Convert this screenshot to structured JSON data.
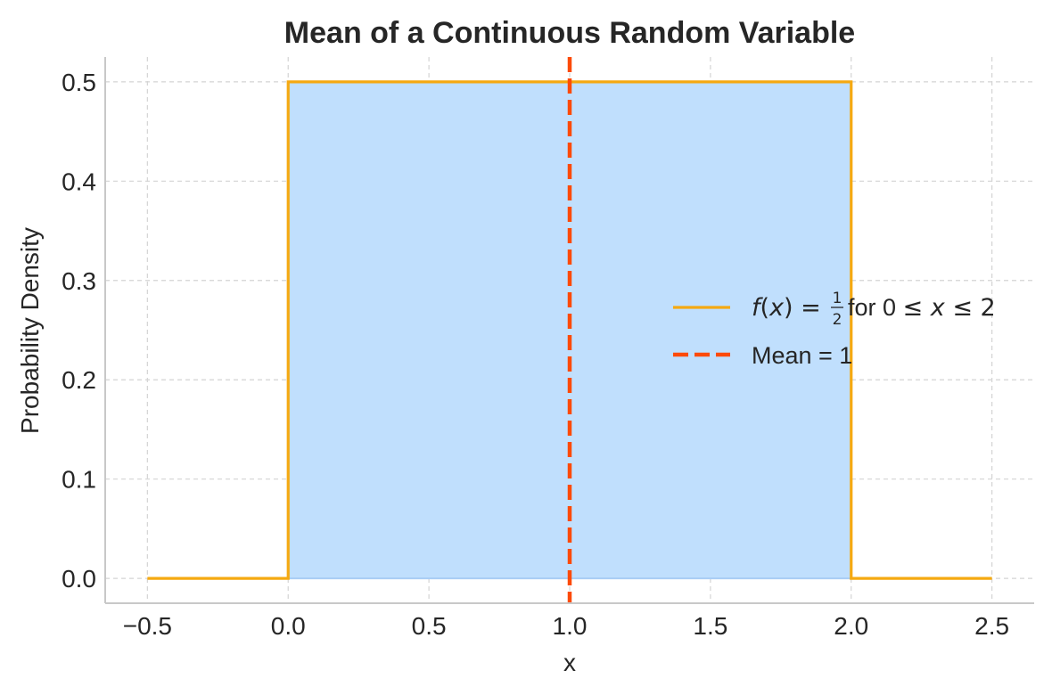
{
  "chart_data": {
    "type": "line",
    "title": "Mean of a Continuous Random Variable",
    "xlabel": "x",
    "ylabel": "Probability Density",
    "xlim": [
      -0.65,
      2.65
    ],
    "ylim": [
      -0.025,
      0.525
    ],
    "x_ticks": [
      -0.5,
      0.0,
      0.5,
      1.0,
      1.5,
      2.0,
      2.5
    ],
    "x_tick_labels": [
      "−0.5",
      "0.0",
      "0.5",
      "1.0",
      "1.5",
      "2.0",
      "2.5"
    ],
    "y_ticks": [
      0.0,
      0.1,
      0.2,
      0.3,
      0.4,
      0.5
    ],
    "y_tick_labels": [
      "0.0",
      "0.1",
      "0.2",
      "0.3",
      "0.4",
      "0.5"
    ],
    "grid": true,
    "legend_position": "center-right",
    "series": [
      {
        "kind": "line",
        "color": "#f5a911",
        "x": [
          -0.5,
          0.0,
          0.0,
          2.0,
          2.0,
          2.5
        ],
        "y": [
          0.0,
          0.0,
          0.5,
          0.5,
          0.0,
          0.0
        ],
        "fill": {
          "x_range": [
            0.0,
            2.0
          ],
          "y": 0.5,
          "color": "#c0dffd"
        }
      },
      {
        "kind": "vline",
        "name": "Mean = 1",
        "x": 1.0,
        "color": "#fc4a08",
        "style": "dashed"
      }
    ],
    "legend": {
      "pdf_label": {
        "func": "f",
        "var": "x",
        "eq": " = ",
        "frac_num": "1",
        "frac_den": "2",
        "for_text": " for 0 ",
        "le1": "≤ ",
        "x2": "x",
        "le2": " ≤ 2"
      },
      "mean_label": "Mean = 1"
    }
  }
}
